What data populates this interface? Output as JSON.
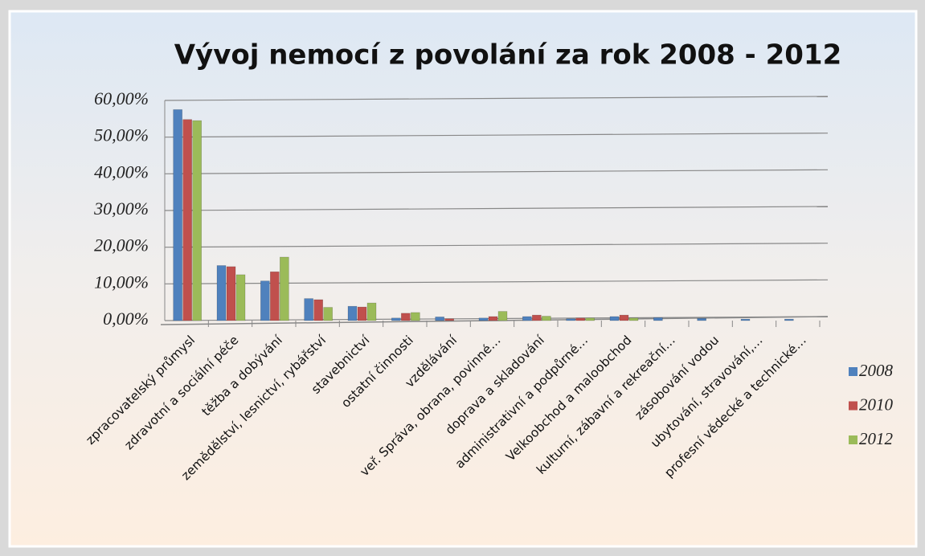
{
  "chart_data": {
    "type": "bar",
    "title": "Vývoj nemocí z povolání za rok 2008 - 2012",
    "categories": [
      "zpracovatelský průmysl",
      "zdravotní a sociální péče",
      "těžba a dobývání",
      "zemědělství, lesnictví, rybářství",
      "stavebnictví",
      "ostatní činnosti",
      "vzdělávání",
      "veř. Správa, obrana, povinné…",
      "doprava a skladování",
      "administrativní a podpůrné…",
      "Velkoobchod a maloobchod",
      "kulturní, zábavní a rekreační…",
      "zásobování vodou",
      "ubytování, stravování,…",
      "profesní vědecké a technické…"
    ],
    "series": [
      {
        "name": "2008",
        "color": "#4f81bd",
        "values": [
          57.5,
          15,
          10.8,
          6,
          3.9,
          0.7,
          1.0,
          0.7,
          1.1,
          0.5,
          1.1,
          0.8,
          0.6,
          0.4,
          0.4
        ]
      },
      {
        "name": "2010",
        "color": "#c0504d",
        "values": [
          54.8,
          14.7,
          13.3,
          5.7,
          3.7,
          2.0,
          0.5,
          1.1,
          1.5,
          0.7,
          1.5,
          0,
          0,
          0,
          0
        ]
      },
      {
        "name": "2012",
        "color": "#9bbb59",
        "values": [
          54.5,
          12.5,
          17.3,
          3.6,
          4.8,
          2.2,
          0,
          2.5,
          1.2,
          0.7,
          0.7,
          0,
          0,
          0,
          0
        ]
      }
    ],
    "ylim": [
      0,
      60
    ],
    "yticks": [
      {
        "value": 0,
        "label": "0,00%"
      },
      {
        "value": 10,
        "label": "10,00%"
      },
      {
        "value": 20,
        "label": "20,00%"
      },
      {
        "value": 30,
        "label": "30,00%"
      },
      {
        "value": 40,
        "label": "40,00%"
      },
      {
        "value": 50,
        "label": "50,00%"
      },
      {
        "value": 60,
        "label": "60,00%"
      }
    ],
    "grid": true,
    "legend": "right"
  }
}
